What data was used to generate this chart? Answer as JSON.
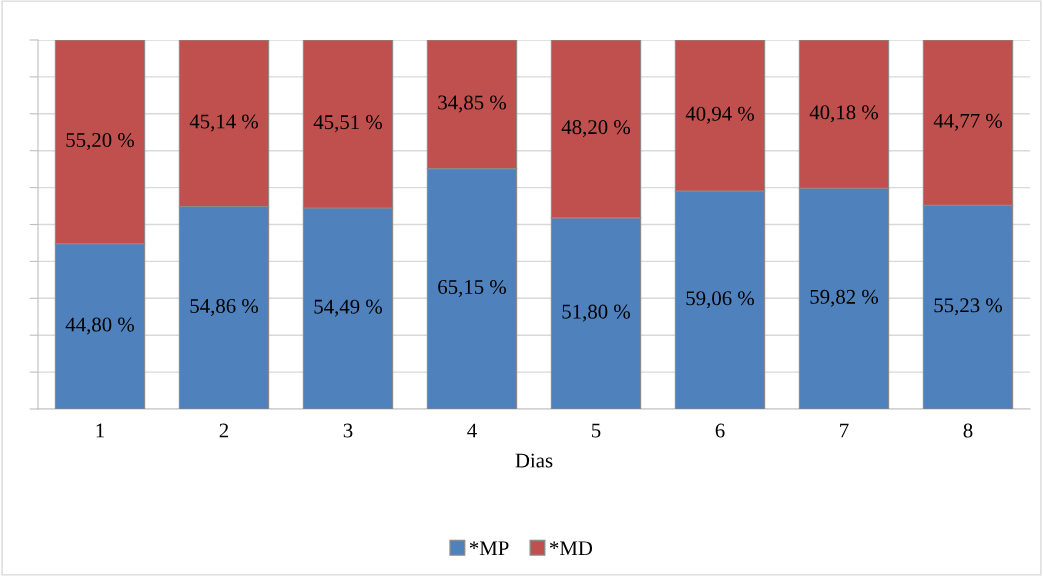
{
  "chart_data": {
    "type": "bar",
    "stacked": true,
    "xlabel": "Dias",
    "categories": [
      "1",
      "2",
      "3",
      "4",
      "5",
      "6",
      "7",
      "8"
    ],
    "series": [
      {
        "name": "*MP",
        "color": "#4f81bd",
        "values": [
          44.8,
          54.86,
          54.49,
          65.15,
          51.8,
          59.06,
          59.82,
          55.23
        ],
        "value_labels": [
          "44,80 %",
          "54,86 %",
          "54,49 %",
          "65,15 %",
          "51,80 %",
          "59,06 %",
          "59,82 %",
          "55,23 %"
        ]
      },
      {
        "name": "*MD",
        "color": "#c0504d",
        "values": [
          55.2,
          45.14,
          45.51,
          34.85,
          48.2,
          40.94,
          40.18,
          44.77
        ],
        "value_labels": [
          "55,20 %",
          "45,14 %",
          "45,51 %",
          "34,85 %",
          "48,20 %",
          "40,94 %",
          "40,18 %",
          "44,77 %"
        ]
      }
    ],
    "ylim": [
      0,
      100
    ],
    "yticks": [
      {
        "value": 0,
        "label": null
      },
      {
        "value": 10,
        "label": null
      },
      {
        "value": 20,
        "label": null
      },
      {
        "value": 30,
        "label": null
      },
      {
        "value": 40,
        "label": null
      },
      {
        "value": 50,
        "label": null
      },
      {
        "value": 60,
        "label": null
      },
      {
        "value": 70,
        "label": null
      },
      {
        "value": 80,
        "label": null
      },
      {
        "value": 90,
        "label": null
      },
      {
        "value": 100,
        "label": null
      }
    ],
    "tick_labels": "x",
    "grid": "y",
    "legend": "bottom"
  }
}
